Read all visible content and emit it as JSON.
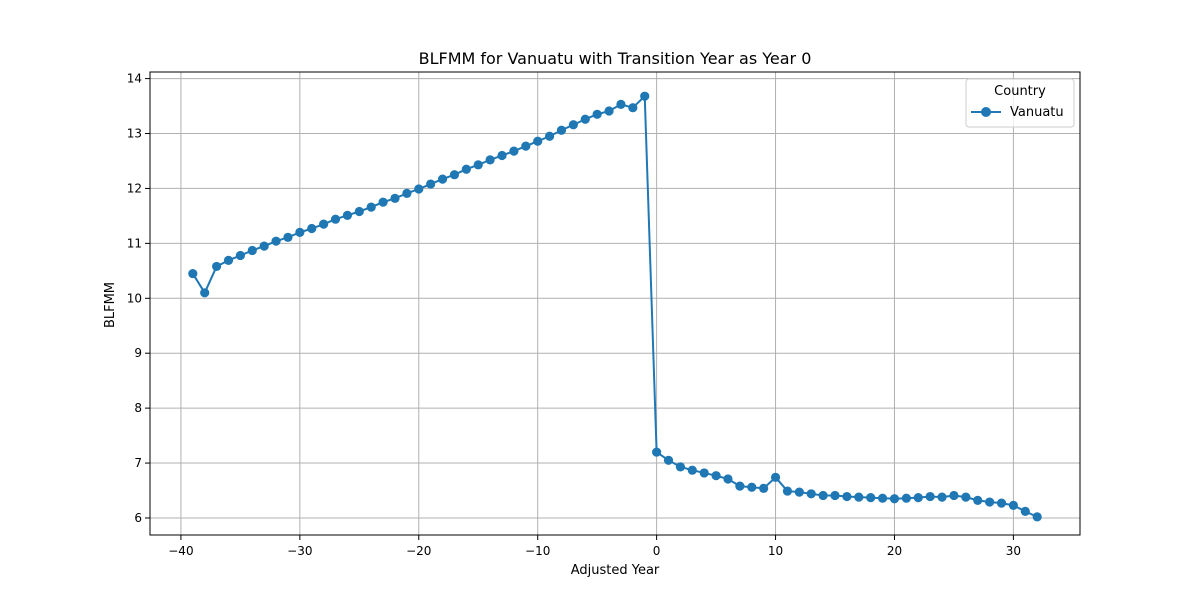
{
  "chart_data": {
    "type": "line",
    "title": "BLFMM for Vanuatu with Transition Year as Year 0",
    "xlabel": "Adjusted Year",
    "ylabel": "BLFMM",
    "xlim": [
      -42.6,
      35.6
    ],
    "ylim": [
      5.69,
      14.12
    ],
    "xticks": [
      -40,
      -30,
      -20,
      -10,
      0,
      10,
      20,
      30
    ],
    "xtick_labels": [
      "−40",
      "−30",
      "−20",
      "−10",
      "0",
      "10",
      "20",
      "30"
    ],
    "yticks": [
      6,
      7,
      8,
      9,
      10,
      11,
      12,
      13,
      14
    ],
    "ytick_labels": [
      "6",
      "7",
      "8",
      "9",
      "10",
      "11",
      "12",
      "13",
      "14"
    ],
    "grid": true,
    "legend": {
      "title": "Country",
      "position": "top-right"
    },
    "series": [
      {
        "name": "Vanuatu",
        "color": "#1f77b4",
        "marker": "circle",
        "x": [
          -39,
          -38,
          -37,
          -36,
          -35,
          -34,
          -33,
          -32,
          -31,
          -30,
          -29,
          -28,
          -27,
          -26,
          -25,
          -24,
          -23,
          -22,
          -21,
          -20,
          -19,
          -18,
          -17,
          -16,
          -15,
          -14,
          -13,
          -12,
          -11,
          -10,
          -9,
          -8,
          -7,
          -6,
          -5,
          -4,
          -3,
          -2,
          -1,
          0,
          1,
          2,
          3,
          4,
          5,
          6,
          7,
          8,
          9,
          10,
          11,
          12,
          13,
          14,
          15,
          16,
          17,
          18,
          19,
          20,
          21,
          22,
          23,
          24,
          25,
          26,
          27,
          28,
          29,
          30,
          31,
          32
        ],
        "y": [
          10.45,
          10.1,
          10.58,
          10.69,
          10.78,
          10.87,
          10.95,
          11.04,
          11.11,
          11.2,
          11.27,
          11.35,
          11.44,
          11.51,
          11.58,
          11.66,
          11.75,
          11.82,
          11.91,
          11.99,
          12.08,
          12.17,
          12.25,
          12.35,
          12.43,
          12.52,
          12.6,
          12.68,
          12.77,
          12.86,
          12.95,
          13.06,
          13.16,
          13.26,
          13.35,
          13.41,
          13.53,
          13.47,
          13.68,
          7.2,
          7.05,
          6.93,
          6.87,
          6.82,
          6.77,
          6.71,
          6.58,
          6.56,
          6.54,
          6.74,
          6.49,
          6.47,
          6.44,
          6.41,
          6.41,
          6.39,
          6.38,
          6.37,
          6.36,
          6.35,
          6.36,
          6.37,
          6.39,
          6.38,
          6.41,
          6.38,
          6.32,
          6.29,
          6.27,
          6.23,
          6.12,
          6.02
        ]
      }
    ]
  }
}
